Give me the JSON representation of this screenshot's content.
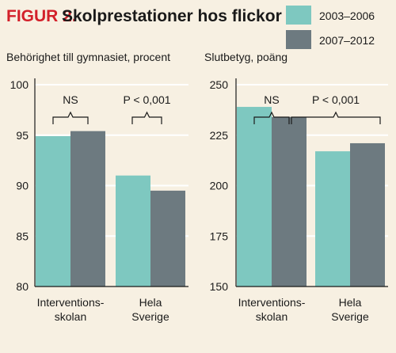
{
  "figure": {
    "label": "FIGUR 2.",
    "title": "Skolprestationer hos flickor"
  },
  "colors": {
    "teal": "#7ec8c0",
    "slate": "#6d7a80",
    "background": "#f7f0e2",
    "accent": "#d3202a"
  },
  "chart_data": [
    {
      "type": "bar",
      "title": "Behörighet till gymnasiet, procent",
      "categories": [
        [
          "Interventions-",
          "skolan"
        ],
        [
          "Hela",
          "Sverige"
        ]
      ],
      "series": [
        {
          "name": "2003–2006",
          "values": [
            94.9,
            91.0
          ]
        },
        {
          "name": "2007–2012",
          "values": [
            95.4,
            89.5
          ]
        }
      ],
      "ylim": [
        80,
        100
      ],
      "yticks": [
        "80",
        "85",
        "90",
        "95",
        "100"
      ],
      "grid": true,
      "legend": "top-right",
      "annotations": [
        "NS",
        "P < 0,001"
      ]
    },
    {
      "type": "bar",
      "title": "Slutbetyg, poäng",
      "categories": [
        [
          "Interventions-",
          "skolan"
        ],
        [
          "Hela",
          "Sverige"
        ]
      ],
      "series": [
        {
          "name": "2003–2006",
          "values": [
            239,
            217
          ]
        },
        {
          "name": "2007–2012",
          "values": [
            234,
            221
          ]
        }
      ],
      "ylim": [
        150,
        250
      ],
      "yticks": [
        "150",
        "175",
        "200",
        "225",
        "250"
      ],
      "grid": true,
      "legend": "top-right",
      "annotations": [
        "NS",
        "P < 0,001"
      ]
    }
  ]
}
